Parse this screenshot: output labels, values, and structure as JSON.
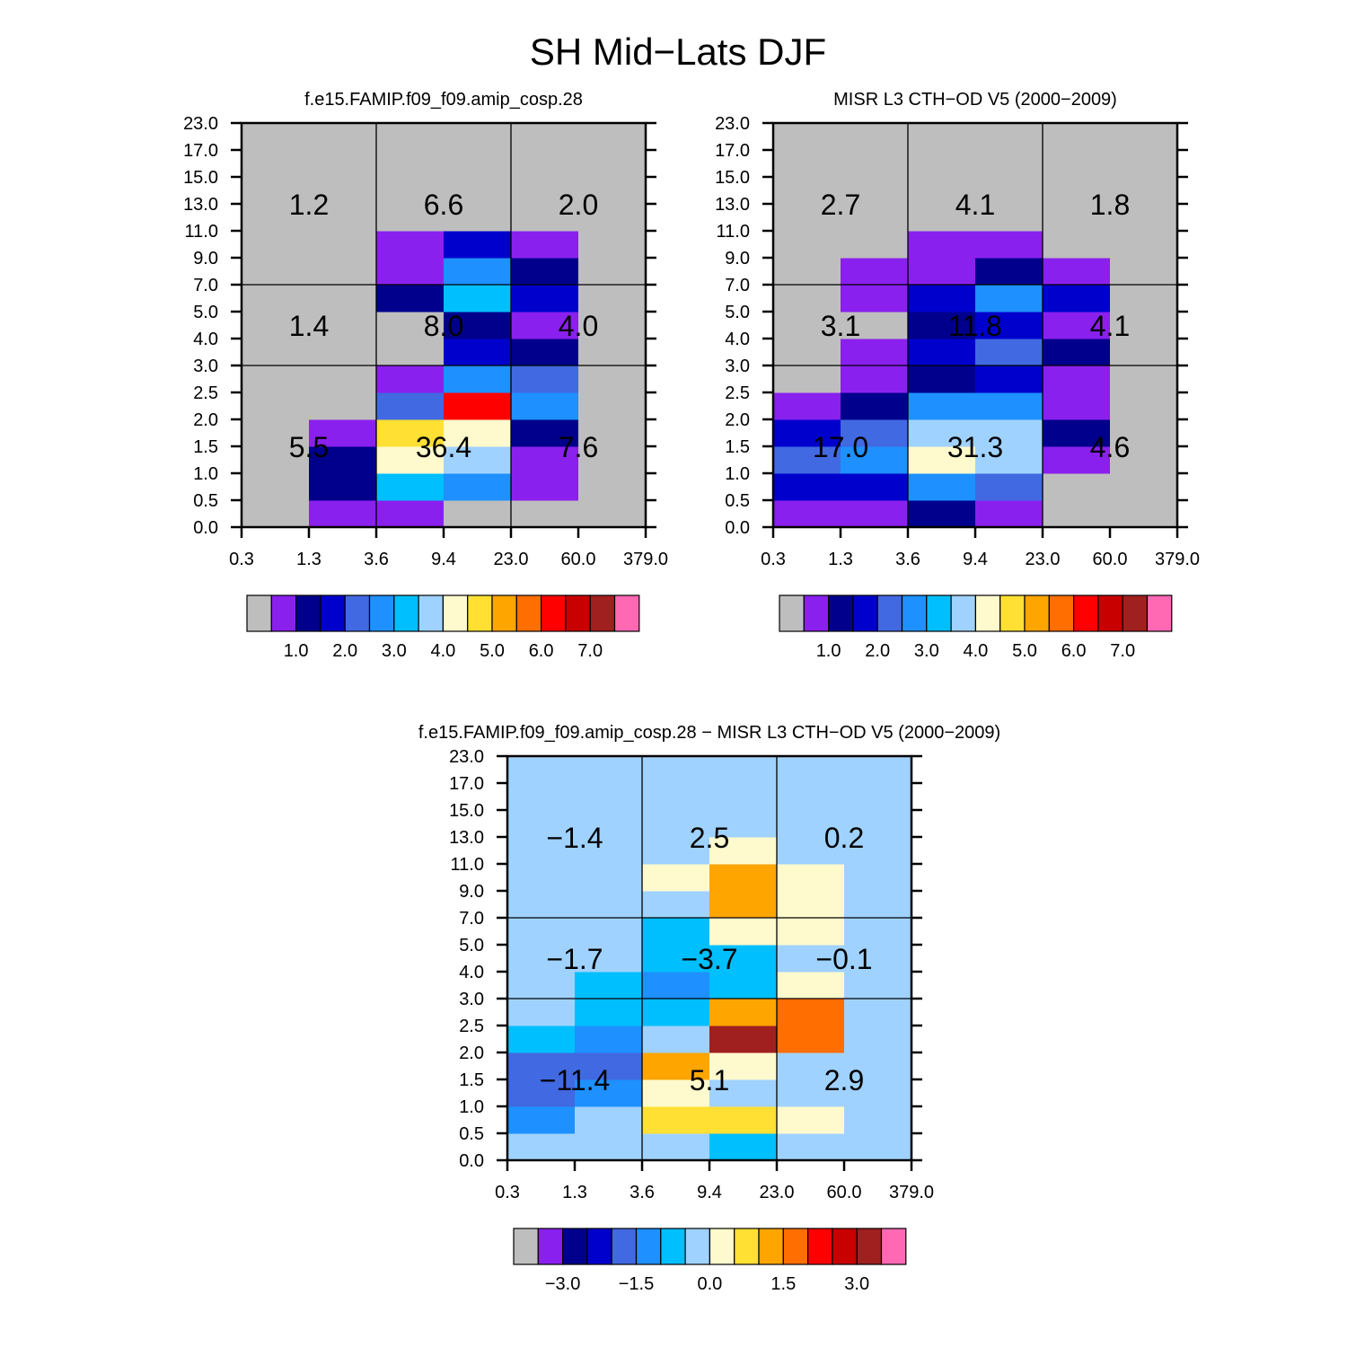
{
  "chart_data": {
    "type": "heatmap",
    "title": "SH Mid−Lats DJF",
    "colors": [
      "#BEBEBE",
      "#8A20EE",
      "#00008C",
      "#0000CD",
      "#4169E1",
      "#1E90FF",
      "#00BFFF",
      "#A0D2FF",
      "#FFFACD",
      "#FFE033",
      "#FFA500",
      "#FF6E00",
      "#FF0000",
      "#C80000",
      "#A02020",
      "#FF69B4"
    ],
    "panels": [
      {
        "name": "model",
        "title": "f.e15.FAMIP.f09_f09.amip_cosp.28",
        "x_tick_labels": [
          "0.3",
          "1.3",
          "3.6",
          "9.4",
          "23.0",
          "60.0",
          "379.0"
        ],
        "y_tick_labels": [
          "0.0",
          "0.5",
          "1.0",
          "1.5",
          "2.0",
          "2.5",
          "3.0",
          "4.0",
          "5.0",
          "7.0",
          "9.0",
          "11.0",
          "13.0",
          "15.0",
          "17.0",
          "23.0"
        ],
        "levels": [
          0.5,
          1.0,
          1.5,
          2.0,
          2.5,
          3.0,
          3.5,
          4.0,
          4.5,
          5.0,
          5.5,
          6.0,
          6.5,
          7.0,
          7.5
        ],
        "colorbar_labels": [
          "1.0",
          "2.0",
          "3.0",
          "4.0",
          "5.0",
          "6.0",
          "7.0"
        ],
        "colorbar_label_values": [
          1.0,
          2.0,
          3.0,
          4.0,
          5.0,
          6.0,
          7.0
        ],
        "values": [
          [
            0.2,
            0.75,
            0.75,
            0.2,
            0.2,
            0.2
          ],
          [
            0.2,
            1.25,
            3.25,
            2.75,
            0.75,
            0.2
          ],
          [
            0.2,
            1.25,
            4.25,
            3.75,
            0.75,
            0.2
          ],
          [
            0.2,
            0.75,
            4.75,
            4.25,
            1.25,
            0.2
          ],
          [
            0.2,
            0.2,
            2.25,
            6.25,
            2.75,
            0.2
          ],
          [
            0.2,
            0.2,
            0.75,
            2.75,
            2.25,
            0.2
          ],
          [
            0.2,
            0.2,
            0.2,
            1.75,
            1.25,
            0.2
          ],
          [
            0.2,
            0.2,
            0.2,
            1.25,
            0.75,
            0.2
          ],
          [
            0.2,
            0.2,
            1.25,
            3.25,
            1.75,
            0.2
          ],
          [
            0.2,
            0.2,
            0.75,
            2.75,
            1.25,
            0.2
          ],
          [
            0.2,
            0.2,
            0.75,
            1.75,
            0.75,
            0.2
          ],
          [
            0.2,
            0.2,
            0.2,
            0.2,
            0.2,
            0.2
          ],
          [
            0.2,
            0.2,
            0.2,
            0.2,
            0.2,
            0.2
          ],
          [
            0.2,
            0.2,
            0.2,
            0.2,
            0.2,
            0.2
          ],
          [
            0.2,
            0.2,
            0.2,
            0.2,
            0.2,
            0.2
          ]
        ],
        "group_totals": {
          "high": [
            "1.2",
            "6.6",
            "2.0"
          ],
          "mid": [
            "1.4",
            "8.0",
            "4.0"
          ],
          "low": [
            "5.5",
            "36.4",
            "7.6"
          ]
        }
      },
      {
        "name": "misr",
        "title": "MISR L3 CTH−OD V5 (2000−2009)",
        "x_tick_labels": [
          "0.3",
          "1.3",
          "3.6",
          "9.4",
          "23.0",
          "60.0",
          "379.0"
        ],
        "y_tick_labels": [
          "0.0",
          "0.5",
          "1.0",
          "1.5",
          "2.0",
          "2.5",
          "3.0",
          "4.0",
          "5.0",
          "7.0",
          "9.0",
          "11.0",
          "13.0",
          "15.0",
          "17.0",
          "23.0"
        ],
        "levels": [
          0.5,
          1.0,
          1.5,
          2.0,
          2.5,
          3.0,
          3.5,
          4.0,
          4.5,
          5.0,
          5.5,
          6.0,
          6.5,
          7.0,
          7.5
        ],
        "colorbar_labels": [
          "1.0",
          "2.0",
          "3.0",
          "4.0",
          "5.0",
          "6.0",
          "7.0"
        ],
        "colorbar_label_values": [
          1.0,
          2.0,
          3.0,
          4.0,
          5.0,
          6.0,
          7.0
        ],
        "values": [
          [
            0.75,
            0.75,
            1.25,
            0.75,
            0.2,
            0.2
          ],
          [
            1.75,
            1.75,
            2.75,
            2.25,
            0.2,
            0.2
          ],
          [
            2.25,
            2.75,
            4.25,
            3.75,
            0.75,
            0.2
          ],
          [
            1.75,
            2.25,
            3.75,
            3.75,
            1.25,
            0.2
          ],
          [
            0.75,
            1.25,
            2.75,
            2.75,
            0.75,
            0.2
          ],
          [
            0.2,
            0.75,
            1.25,
            1.75,
            0.75,
            0.2
          ],
          [
            0.2,
            0.75,
            1.75,
            2.25,
            1.25,
            0.2
          ],
          [
            0.2,
            0.2,
            1.25,
            1.75,
            0.75,
            0.2
          ],
          [
            0.2,
            0.75,
            1.75,
            2.75,
            1.75,
            0.2
          ],
          [
            0.2,
            0.75,
            0.75,
            1.25,
            0.75,
            0.2
          ],
          [
            0.2,
            0.2,
            0.75,
            0.75,
            0.2,
            0.2
          ],
          [
            0.2,
            0.2,
            0.2,
            0.2,
            0.2,
            0.2
          ],
          [
            0.2,
            0.2,
            0.2,
            0.2,
            0.2,
            0.2
          ],
          [
            0.2,
            0.2,
            0.2,
            0.2,
            0.2,
            0.2
          ],
          [
            0.2,
            0.2,
            0.2,
            0.2,
            0.2,
            0.2
          ]
        ],
        "group_totals": {
          "high": [
            "2.7",
            "4.1",
            "1.8"
          ],
          "mid": [
            "3.1",
            "11.8",
            "4.1"
          ],
          "low": [
            "17.0",
            "31.3",
            "4.6"
          ]
        }
      },
      {
        "name": "difference",
        "title": "f.e15.FAMIP.f09_f09.amip_cosp.28 − MISR L3 CTH−OD V5 (2000−2009)",
        "x_tick_labels": [
          "0.3",
          "1.3",
          "3.6",
          "9.4",
          "23.0",
          "60.0",
          "379.0"
        ],
        "y_tick_labels": [
          "0.0",
          "0.5",
          "1.0",
          "1.5",
          "2.0",
          "2.5",
          "3.0",
          "4.0",
          "5.0",
          "7.0",
          "9.0",
          "11.0",
          "13.0",
          "15.0",
          "17.0",
          "23.0"
        ],
        "levels": [
          -3.5,
          -3.0,
          -2.5,
          -2.0,
          -1.5,
          -1.0,
          -0.5,
          0.0,
          0.5,
          1.0,
          1.5,
          2.0,
          2.5,
          3.0,
          3.5
        ],
        "colorbar_labels": [
          "−3.0",
          "−1.5",
          "0.0",
          "1.5",
          "3.0"
        ],
        "colorbar_label_values": [
          -3.0,
          -1.5,
          0.0,
          1.5,
          3.0
        ],
        "values": [
          [
            -0.25,
            -0.25,
            -0.25,
            -0.75,
            -0.25,
            -0.25
          ],
          [
            -1.25,
            -0.25,
            0.75,
            0.75,
            0.25,
            -0.25
          ],
          [
            -1.75,
            -1.25,
            0.25,
            -0.25,
            -0.25,
            -0.25
          ],
          [
            -1.75,
            -1.75,
            1.25,
            0.25,
            -0.25,
            -0.25
          ],
          [
            -0.75,
            -1.25,
            -0.25,
            3.25,
            1.75,
            -0.25
          ],
          [
            -0.25,
            -0.75,
            -0.75,
            1.25,
            1.75,
            -0.25
          ],
          [
            -0.25,
            -0.75,
            -1.25,
            -0.75,
            0.25,
            -0.25
          ],
          [
            -0.25,
            -0.25,
            -0.75,
            -0.75,
            -0.25,
            -0.25
          ],
          [
            -0.25,
            -0.25,
            -0.75,
            0.25,
            0.25,
            -0.25
          ],
          [
            -0.25,
            -0.25,
            -0.25,
            1.25,
            0.25,
            -0.25
          ],
          [
            -0.25,
            -0.25,
            0.25,
            1.25,
            0.25,
            -0.25
          ],
          [
            -0.25,
            -0.25,
            -0.25,
            0.25,
            -0.25,
            -0.25
          ],
          [
            -0.25,
            -0.25,
            -0.25,
            -0.25,
            -0.25,
            -0.25
          ],
          [
            -0.25,
            -0.25,
            -0.25,
            -0.25,
            -0.25,
            -0.25
          ],
          [
            -0.25,
            -0.25,
            -0.25,
            -0.25,
            -0.25,
            -0.25
          ]
        ],
        "group_totals": {
          "high": [
            "−1.4",
            "2.5",
            "0.2"
          ],
          "mid": [
            "−1.7",
            "−3.7",
            "−0.1"
          ],
          "low": [
            "−11.4",
            "5.1",
            "2.9"
          ]
        }
      }
    ]
  }
}
